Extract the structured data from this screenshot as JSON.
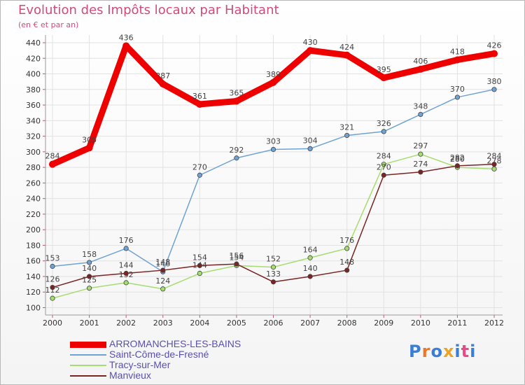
{
  "header": {
    "title": "Evolution des Impôts locaux par Habitant",
    "subtitle": "(en € et par an)"
  },
  "logo": {
    "text": "Proxiti",
    "letter_colors": [
      "#3a7fd5",
      "#e8792a",
      "#3a7fd5",
      "#e8a52a",
      "#3a7fd5",
      "#e84a8a",
      "#3a7fd5"
    ]
  },
  "colors": {
    "title": "#d24a7c",
    "axis": "#999999",
    "grid": "#e2e2e2"
  },
  "chart_data": {
    "type": "line",
    "title": "Evolution des Impôts locaux par Habitant",
    "subtitle": "(en € et par an)",
    "xlabel": "",
    "ylabel": "",
    "ylim": [
      100,
      450
    ],
    "y_ticks": [
      100,
      120,
      140,
      160,
      180,
      200,
      220,
      240,
      260,
      280,
      300,
      320,
      340,
      360,
      380,
      400,
      420,
      440
    ],
    "x": [
      "2000",
      "2001",
      "2002",
      "2003",
      "2004",
      "2005",
      "2006",
      "2007",
      "2008",
      "2009",
      "2010",
      "2011",
      "2012"
    ],
    "grid": true,
    "legend_position": "bottom-left",
    "series": [
      {
        "name": "ARROMANCHES-LES-BAINS",
        "color": "#ee0000",
        "values": [
          284,
          305,
          436,
          387,
          361,
          365,
          389,
          430,
          424,
          395,
          406,
          418,
          426
        ]
      },
      {
        "name": "Saint-Côme-de-Fresné",
        "color": "#6fa3d3",
        "values": [
          153,
          158,
          176,
          146,
          270,
          292,
          303,
          304,
          321,
          326,
          348,
          370,
          380
        ]
      },
      {
        "name": "Tracy-sur-Mer",
        "color": "#a6dd70",
        "values": [
          112,
          125,
          132,
          124,
          144,
          154,
          152,
          164,
          176,
          284,
          297,
          280,
          278
        ]
      },
      {
        "name": "Manvieux",
        "color": "#7a2424",
        "values": [
          126,
          140,
          144,
          148,
          154,
          156,
          133,
          140,
          148,
          270,
          274,
          282,
          284
        ]
      }
    ]
  }
}
